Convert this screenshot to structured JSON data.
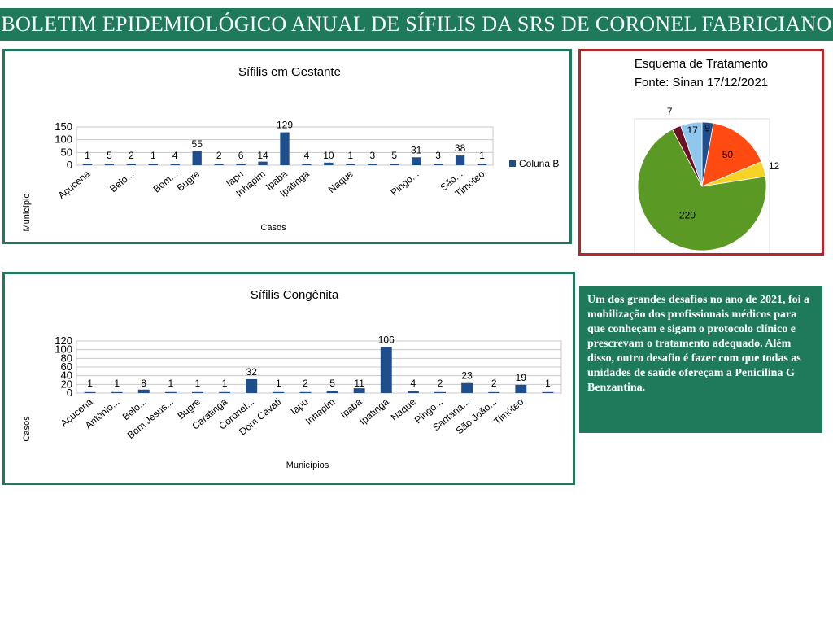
{
  "page": {
    "title": "BOLETIM EPIDEMIOLÓGICO ANUAL DE SÍFILIS DA SRS DE CORONEL FABRICIANO",
    "note": "Um dos grandes desafios no ano de 2021, foi a mobilização dos profissionais médicos para que conheçam e sigam o protocolo clínico e prescrevam o tratamento adequado. Além disso, outro desafio é fazer com que todas as unidades de saúde ofereçam a Penicilina G Benzantina."
  },
  "colors": {
    "banner": "#1f7a5c",
    "panel_border_green": "#1f7a5c",
    "panel_border_red": "#b3262b",
    "bar": "#1f4e8c",
    "grid": "#c8c8c8"
  },
  "chart_data": [
    {
      "type": "bar",
      "title": "Sífilis em Gestante",
      "xlabel": "Casos",
      "ylabel": "Município",
      "legend": {
        "position": "right",
        "entries": [
          "Coluna B"
        ]
      },
      "ylim": [
        0,
        150
      ],
      "yticks": [
        0,
        50,
        100,
        150
      ],
      "grid": true,
      "series": [
        {
          "name": "Coluna B",
          "values": [
            1,
            5,
            2,
            1,
            4,
            55,
            2,
            6,
            14,
            129,
            4,
            10,
            1,
            3,
            5,
            31,
            3,
            38,
            1
          ]
        }
      ],
      "categories": [
        "Açucena",
        "",
        "Belo...",
        "",
        "Bom...",
        "Bugre",
        "",
        "Iapu",
        "Inhapim",
        "Ipaba",
        "Ipatinga",
        "",
        "Naque",
        "",
        "",
        "Pingo...",
        "",
        "São...",
        "Timóteo"
      ]
    },
    {
      "type": "bar",
      "title": "Sífilis Congênita",
      "xlabel": "Municípios",
      "ylabel": "Casos",
      "ylim": [
        0,
        120
      ],
      "yticks": [
        0,
        20,
        40,
        60,
        80,
        100,
        120
      ],
      "grid": true,
      "series": [
        {
          "values": [
            1,
            1,
            8,
            1,
            1,
            1,
            32,
            1,
            2,
            5,
            11,
            106,
            4,
            2,
            23,
            2,
            19,
            1
          ]
        }
      ],
      "categories": [
        "Açucena",
        "Antônio...",
        "Belo...",
        "Bom Jesus...",
        "Bugre",
        "Caratinga",
        "Coronel...",
        "Dom Cavati",
        "Iapu",
        "Inhapim",
        "Ipaba",
        "Ipatinga",
        "Naque",
        "Pingo...",
        "Santana...",
        "São João...",
        "Timóteo",
        ""
      ]
    },
    {
      "type": "pie",
      "title": "Esquema de Tratamento",
      "subtitle": "Fonte: Sinan 17/12/2021",
      "slices": [
        {
          "value": 9,
          "color": "#1f4e8c"
        },
        {
          "value": 50,
          "color": "#ff4b12"
        },
        {
          "value": 12,
          "color": "#f5d327"
        },
        {
          "value": 220,
          "color": "#5a9a24"
        },
        {
          "value": 7,
          "color": "#6e1026"
        },
        {
          "value": 17,
          "color": "#8fc6ee"
        }
      ]
    }
  ]
}
